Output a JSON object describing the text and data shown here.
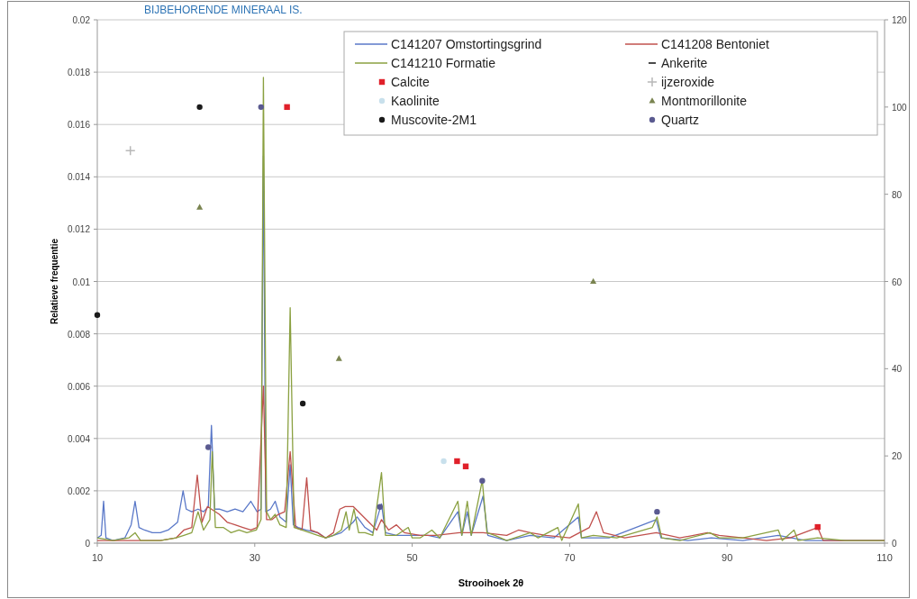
{
  "chart_data": {
    "type": "line",
    "xlabel": "Strooihoek 2θ",
    "ylabel": "Relatieve frequentie",
    "annotations": [
      "BIJBEHORENDE MINERAAL IS."
    ],
    "xlim": [
      10,
      110
    ],
    "xticks": [
      10,
      30,
      50,
      70,
      90,
      110
    ],
    "ylim": [
      0,
      0.02
    ],
    "yticks": [
      0,
      0.002,
      0.004,
      0.006,
      0.008,
      0.01,
      0.012,
      0.014,
      0.016,
      0.018,
      0.02
    ],
    "y2lim": [
      0,
      120
    ],
    "y2ticks": [
      0,
      20,
      40,
      60,
      80,
      100,
      120
    ],
    "grid": "y",
    "legend": "top right",
    "line_style": "solid",
    "marker": "none",
    "series": [
      {
        "name": "C141207 Omstortingsgrind",
        "color": "#5a78c8",
        "x": [
          10,
          10.5,
          10.8,
          11.1,
          12,
          13.5,
          14.3,
          14.8,
          15.3,
          16,
          17,
          18,
          19,
          20.2,
          20.9,
          21.3,
          22,
          22.8,
          23.5,
          24.1,
          24.5,
          24.9,
          25.5,
          26.5,
          27.5,
          28.5,
          29.5,
          30.3,
          30.8,
          31.1,
          31.4,
          32,
          32.6,
          33.2,
          34,
          34.5,
          34.9,
          35.5,
          36.5,
          38,
          39,
          40,
          41,
          42.5,
          43,
          44,
          45,
          46.1,
          46.6,
          48,
          50,
          52,
          53.5,
          55.8,
          56.3,
          57,
          57.5,
          59,
          59.6,
          62,
          65,
          68,
          71.1,
          71.5,
          75,
          81,
          81.6,
          85,
          88,
          92,
          96.5,
          100,
          105,
          110
        ],
        "values": [
          0.0002,
          0.0003,
          0.0016,
          0.0002,
          0.0001,
          0.0002,
          0.0007,
          0.0016,
          0.0006,
          0.0005,
          0.0004,
          0.0004,
          0.0005,
          0.0008,
          0.002,
          0.0013,
          0.0012,
          0.0013,
          0.0012,
          0.0014,
          0.0045,
          0.0013,
          0.0013,
          0.0012,
          0.0013,
          0.0012,
          0.0016,
          0.0012,
          0.0013,
          0.0148,
          0.0012,
          0.0013,
          0.0016,
          0.001,
          0.0008,
          0.003,
          0.0007,
          0.0006,
          0.0005,
          0.0004,
          0.0002,
          0.0003,
          0.0004,
          0.0008,
          0.001,
          0.0006,
          0.0004,
          0.0015,
          0.0004,
          0.0003,
          0.0003,
          0.0003,
          0.0002,
          0.0012,
          0.0003,
          0.0012,
          0.0003,
          0.0018,
          0.0003,
          0.0001,
          0.0003,
          0.0002,
          0.001,
          0.0002,
          0.0002,
          0.0009,
          0.0002,
          0.0001,
          0.0002,
          0.0001,
          0.0003,
          0.0001,
          0.0001,
          0.0001
        ]
      },
      {
        "name": "C141208 Bentoniet",
        "color": "#c0504d",
        "x": [
          10,
          14.5,
          18,
          20,
          21,
          22,
          22.7,
          23.3,
          24,
          24.5,
          25.5,
          26.5,
          27.5,
          28.5,
          29.5,
          30.3,
          31.1,
          31.5,
          32.2,
          33,
          33.8,
          34.5,
          35.2,
          36,
          36.6,
          37.1,
          38,
          39,
          40,
          40.8,
          41.5,
          42.5,
          43.5,
          44.5,
          45.5,
          46.1,
          47,
          48,
          49,
          51,
          53,
          56,
          59,
          62,
          63.5,
          65,
          67,
          70,
          72.5,
          73.4,
          74.3,
          77,
          81,
          84,
          87.5,
          89,
          92,
          95,
          98,
          101.5,
          102.2,
          106,
          110
        ],
        "values": [
          0.0001,
          0.0001,
          0.0001,
          0.0002,
          0.0005,
          0.0006,
          0.0026,
          0.0008,
          0.0014,
          0.0013,
          0.0011,
          0.0008,
          0.0007,
          0.0006,
          0.0005,
          0.0006,
          0.006,
          0.0009,
          0.0009,
          0.0011,
          0.0012,
          0.0035,
          0.0006,
          0.0005,
          0.0025,
          0.0005,
          0.0004,
          0.0002,
          0.0004,
          0.0013,
          0.0014,
          0.0014,
          0.0011,
          0.0008,
          0.0005,
          0.0009,
          0.0005,
          0.0007,
          0.0004,
          0.0003,
          0.0003,
          0.0004,
          0.0004,
          0.0003,
          0.0005,
          0.0004,
          0.0003,
          0.0002,
          0.0006,
          0.0012,
          0.0004,
          0.0002,
          0.0004,
          0.0002,
          0.0004,
          0.0003,
          0.0002,
          0.0001,
          0.0002,
          0.0006,
          0.0001,
          0.0001,
          0.0001
        ]
      },
      {
        "name": "C141210 Formatie",
        "color": "#8aa040",
        "x": [
          10,
          12,
          14,
          14.8,
          15.5,
          18,
          20,
          21,
          22,
          22.8,
          23.5,
          24.3,
          24.6,
          25,
          26,
          27,
          28,
          29,
          30.2,
          30.8,
          31.1,
          31.5,
          32,
          32.6,
          33.2,
          34,
          34.5,
          35,
          36,
          37,
          38,
          39,
          40,
          41,
          41.6,
          42,
          42.6,
          43.2,
          44,
          45,
          46.1,
          46.6,
          48,
          49.5,
          50,
          51,
          52.5,
          53.5,
          55.8,
          56.3,
          57,
          57.5,
          58.9,
          59.5,
          60.5,
          62,
          65,
          66,
          68.5,
          69,
          71.1,
          71.5,
          73,
          76,
          80.5,
          81.1,
          81.7,
          84,
          87.8,
          89,
          92,
          96.5,
          97,
          98.5,
          99,
          101.5,
          105,
          110
        ],
        "values": [
          0.0002,
          0.0001,
          0.0002,
          0.0004,
          0.0001,
          0.0001,
          0.0002,
          0.0003,
          0.0004,
          0.0012,
          0.0005,
          0.0009,
          0.0035,
          0.0006,
          0.0006,
          0.0004,
          0.0005,
          0.0004,
          0.0005,
          0.0009,
          0.0178,
          0.0012,
          0.0009,
          0.0011,
          0.0007,
          0.0006,
          0.009,
          0.0006,
          0.0005,
          0.0004,
          0.0003,
          0.0002,
          0.0003,
          0.0005,
          0.0012,
          0.0005,
          0.0013,
          0.0004,
          0.0004,
          0.0003,
          0.0027,
          0.0003,
          0.0003,
          0.0006,
          0.0002,
          0.0002,
          0.0005,
          0.0002,
          0.0016,
          0.0003,
          0.0016,
          0.0003,
          0.0024,
          0.0004,
          0.0003,
          0.0001,
          0.0004,
          0.0002,
          0.0006,
          0.0001,
          0.0015,
          0.0002,
          0.0003,
          0.0002,
          0.0006,
          0.001,
          0.0002,
          0.0001,
          0.0004,
          0.0002,
          0.0002,
          0.0005,
          0.0001,
          0.0005,
          0.0001,
          0.0002,
          0.0001,
          0.0001
        ]
      },
      {
        "name": "Ankerite",
        "type": "scatter",
        "axis": "y2",
        "color": "#4a4a4a",
        "marker": "none"
      },
      {
        "name": "Calcite",
        "type": "scatter",
        "axis": "y2",
        "color": "#e0202a",
        "marker": "square",
        "x": [
          34.1,
          55.7,
          56.8,
          101.5
        ],
        "values": [
          100,
          18.8,
          17.6,
          3.7
        ]
      },
      {
        "name": "ijzeroxide",
        "type": "scatter",
        "axis": "y2",
        "color": "#b8b8b8",
        "marker": "cross",
        "x": [
          14.2
        ],
        "values": [
          90
        ]
      },
      {
        "name": "Kaolinite",
        "type": "scatter",
        "axis": "y2",
        "color": "#c8e0ec",
        "marker": "circle",
        "x": [
          54
        ],
        "values": [
          18.8
        ]
      },
      {
        "name": "Montmorillonite",
        "type": "scatter",
        "axis": "y2",
        "color": "#7a8450",
        "marker": "triangle",
        "x": [
          23,
          40.7,
          73
        ],
        "values": [
          77,
          42.3,
          60
        ]
      },
      {
        "name": "Muscovite-2M1",
        "type": "scatter",
        "axis": "y2",
        "color": "#1a1a1a",
        "marker": "circle",
        "x": [
          10,
          23,
          36.1
        ],
        "values": [
          52.3,
          100,
          32
        ]
      },
      {
        "name": "Quartz",
        "type": "scatter",
        "axis": "y2",
        "color": "#5a5a90",
        "marker": "circle",
        "x": [
          30.8,
          24.1,
          45.9,
          58.9,
          81.1
        ],
        "values": [
          100,
          22,
          8.3,
          14.3,
          7.2
        ]
      }
    ]
  }
}
